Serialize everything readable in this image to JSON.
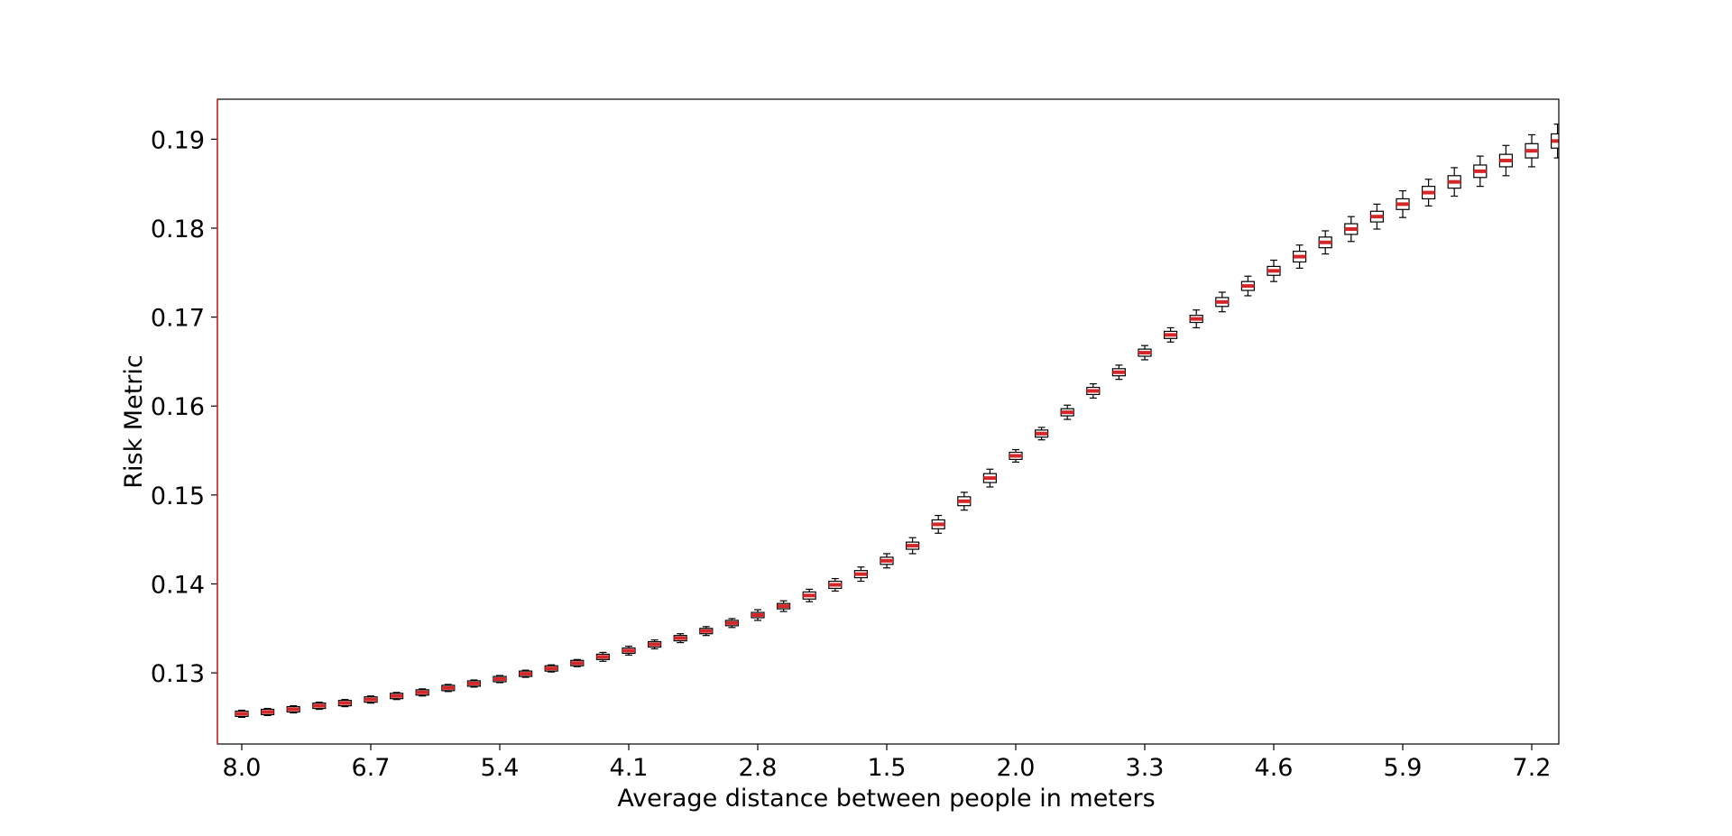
{
  "chart_data": {
    "type": "box",
    "title": "",
    "xlabel": "Average distance between people in meters",
    "ylabel": "Risk Metric",
    "ylim": [
      0.122,
      0.1945
    ],
    "ytick_values": [
      0.13,
      0.14,
      0.15,
      0.16,
      0.17,
      0.18,
      0.19
    ],
    "ytick_labels": [
      "0.13",
      "0.14",
      "0.15",
      "0.16",
      "0.17",
      "0.18",
      "0.19"
    ],
    "xtick_labels": [
      {
        "index": 0,
        "label": "8.0"
      },
      {
        "index": 5,
        "label": "6.7"
      },
      {
        "index": 10,
        "label": "5.4"
      },
      {
        "index": 15,
        "label": "4.1"
      },
      {
        "index": 20,
        "label": "2.8"
      },
      {
        "index": 25,
        "label": "1.5"
      },
      {
        "index": 30,
        "label": "2.0"
      },
      {
        "index": 35,
        "label": "3.3"
      },
      {
        "index": 40,
        "label": "4.6"
      },
      {
        "index": 45,
        "label": "5.9"
      },
      {
        "index": 50,
        "label": "7.2"
      }
    ],
    "box_count": 52,
    "grid": false,
    "colors": {
      "median": "#d62728",
      "box_edge": "#000000",
      "axes": "#000000",
      "left_spine": "#d62728"
    },
    "medians": [
      0.1254,
      0.1256,
      0.1259,
      0.1263,
      0.1266,
      0.127,
      0.1274,
      0.1278,
      0.1283,
      0.1288,
      0.1293,
      0.1299,
      0.1305,
      0.1311,
      0.1318,
      0.1325,
      0.1332,
      0.1339,
      0.1347,
      0.1356,
      0.1365,
      0.1375,
      0.1387,
      0.1399,
      0.1411,
      0.1426,
      0.1443,
      0.1467,
      0.1493,
      0.1519,
      0.1544,
      0.1569,
      0.1593,
      0.1617,
      0.1638,
      0.166,
      0.168,
      0.1698,
      0.1717,
      0.1735,
      0.1752,
      0.1768,
      0.1784,
      0.1799,
      0.1813,
      0.1827,
      0.184,
      0.1852,
      0.1864,
      0.1876,
      0.1887,
      0.1898
    ],
    "box_half_height": [
      0.0003,
      0.0003,
      0.0003,
      0.0003,
      0.0003,
      0.0003,
      0.0003,
      0.0003,
      0.0003,
      0.0003,
      0.0003,
      0.0003,
      0.0003,
      0.0003,
      0.0003,
      0.0003,
      0.0003,
      0.0003,
      0.0003,
      0.0003,
      0.0003,
      0.0003,
      0.0004,
      0.0004,
      0.0004,
      0.0004,
      0.0004,
      0.0005,
      0.0005,
      0.0005,
      0.0004,
      0.0004,
      0.0004,
      0.0004,
      0.0004,
      0.0004,
      0.0004,
      0.0004,
      0.0005,
      0.0005,
      0.0005,
      0.0006,
      0.0006,
      0.0006,
      0.0006,
      0.0006,
      0.0007,
      0.0007,
      0.0007,
      0.0007,
      0.0008,
      0.0008
    ],
    "whisker_half_range": [
      0.0004,
      0.0004,
      0.0004,
      0.0004,
      0.0004,
      0.0004,
      0.0004,
      0.0004,
      0.0004,
      0.0004,
      0.0004,
      0.0004,
      0.0004,
      0.0004,
      0.0005,
      0.0005,
      0.0005,
      0.0005,
      0.0005,
      0.0005,
      0.0006,
      0.0006,
      0.0007,
      0.0007,
      0.0008,
      0.0008,
      0.0009,
      0.001,
      0.001,
      0.001,
      0.0007,
      0.0007,
      0.0008,
      0.0008,
      0.0008,
      0.0008,
      0.0008,
      0.001,
      0.0011,
      0.0011,
      0.0012,
      0.0013,
      0.0013,
      0.0014,
      0.0014,
      0.0015,
      0.0015,
      0.0016,
      0.0017,
      0.0017,
      0.0018,
      0.0019
    ]
  }
}
